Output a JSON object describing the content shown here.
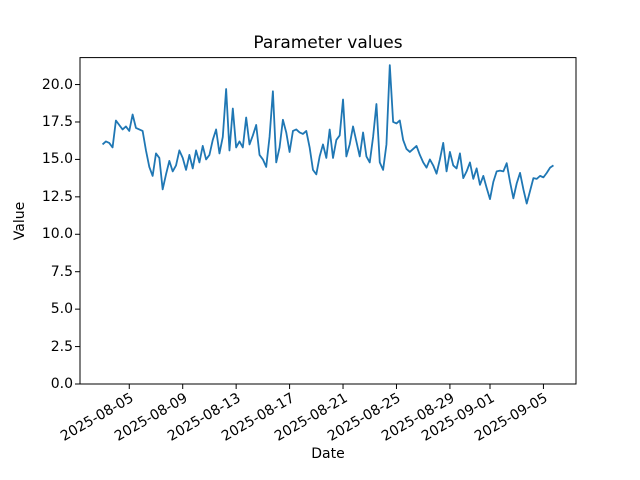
{
  "chart_data": {
    "type": "line",
    "title": "Parameter values",
    "xlabel": "Date",
    "ylabel": "Value",
    "line_color": "#1f77b4",
    "grid": false,
    "legend": "none",
    "y_tick_labels": [
      "0.0",
      "2.5",
      "5.0",
      "7.5",
      "10.0",
      "12.5",
      "15.0",
      "17.5",
      "20.0"
    ],
    "y_tick_values": [
      0,
      2.5,
      5,
      7.5,
      10,
      12.5,
      15,
      17.5,
      20
    ],
    "ylim": [
      0,
      21.8
    ],
    "x_tick_labels": [
      "2025-08-05",
      "2025-08-09",
      "2025-08-13",
      "2025-08-17",
      "2025-08-21",
      "2025-08-25",
      "2025-08-29",
      "2025-09-01",
      "2025-09-05"
    ],
    "x_tick_days": [
      4,
      8,
      12,
      16,
      20,
      24,
      28,
      31,
      35
    ],
    "x_epoch": "2025-08-01",
    "xlim_days": [
      0.3125,
      37.4375
    ],
    "x_start_day": 2.0,
    "x_step_days": 0.25,
    "values": [
      16.0,
      16.2,
      16.1,
      15.8,
      17.6,
      17.3,
      17.0,
      17.2,
      16.9,
      18.0,
      17.1,
      17.0,
      16.9,
      15.6,
      14.5,
      13.9,
      15.4,
      15.1,
      13.0,
      14.0,
      14.9,
      14.2,
      14.6,
      15.6,
      15.1,
      14.3,
      15.3,
      14.4,
      15.6,
      14.8,
      15.9,
      15.0,
      15.3,
      16.3,
      17.0,
      15.4,
      16.5,
      19.7,
      15.6,
      18.4,
      15.8,
      16.2,
      15.8,
      17.8,
      16.0,
      16.6,
      17.3,
      15.3,
      15.0,
      14.5,
      16.5,
      19.55,
      14.8,
      15.8,
      17.65,
      16.8,
      15.5,
      16.9,
      17.0,
      16.8,
      16.7,
      16.9,
      15.8,
      14.3,
      14.0,
      15.2,
      16.0,
      15.1,
      17.0,
      15.1,
      16.3,
      16.6,
      19.0,
      15.2,
      16.0,
      17.2,
      16.2,
      15.2,
      16.8,
      15.2,
      14.8,
      16.5,
      18.7,
      14.8,
      14.3,
      16.0,
      21.3,
      17.5,
      17.4,
      17.6,
      16.3,
      15.7,
      15.5,
      15.7,
      15.9,
      15.3,
      14.8,
      14.45,
      15.0,
      14.6,
      14.05,
      15.0,
      16.1,
      14.2,
      15.5,
      14.6,
      14.4,
      15.4,
      13.75,
      14.2,
      14.8,
      13.7,
      14.4,
      13.3,
      13.9,
      13.1,
      12.35,
      13.5,
      14.2,
      14.25,
      14.2,
      14.75,
      13.5,
      12.4,
      13.4,
      14.1,
      13.0,
      12.05,
      12.9,
      13.75,
      13.7,
      13.9,
      13.8,
      14.1,
      14.45,
      14.6
    ]
  }
}
